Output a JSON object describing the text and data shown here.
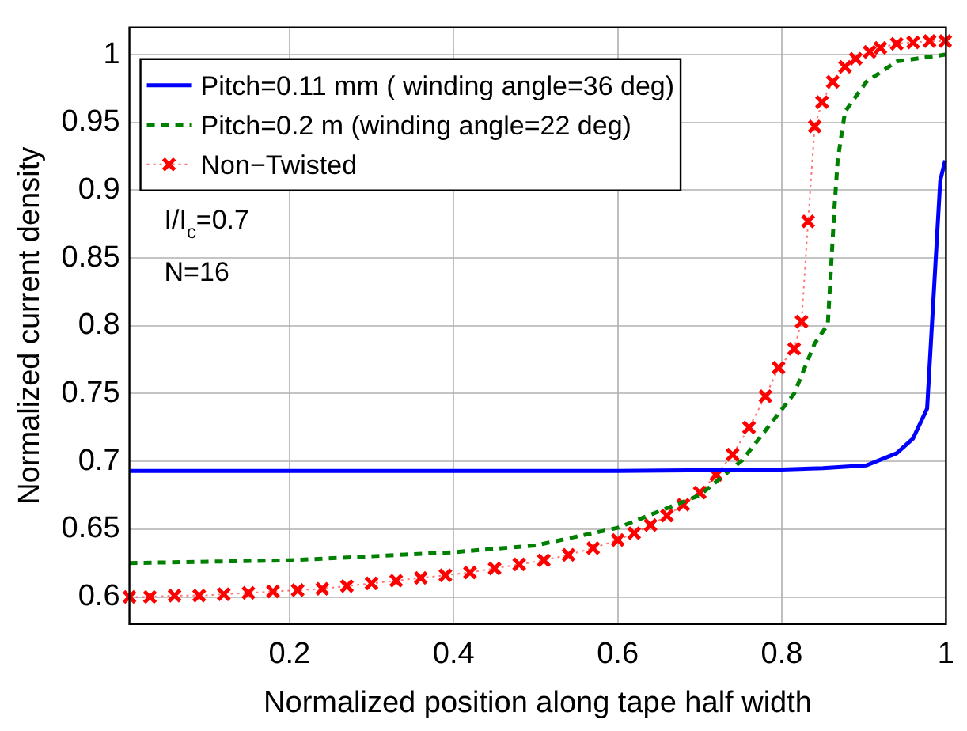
{
  "chart_data": {
    "type": "line",
    "xlabel": "Normalized position along tape half width",
    "ylabel": "Normalized current density",
    "xlim": [
      0.005,
      1
    ],
    "xticks": [
      0.2,
      0.4,
      0.6,
      0.8,
      1
    ],
    "ylim": [
      0.58,
      1.02
    ],
    "yticks": [
      0.6,
      0.65,
      0.7,
      0.75,
      0.8,
      0.85,
      0.9,
      0.95,
      1
    ],
    "grid": true,
    "legend": "top left",
    "annotations": [
      "I/I$_{c}$=0.7",
      "N=16"
    ],
    "series": [
      {
        "name": "Pitch=0.11 mm ( winding angle=36 deg)",
        "color": "#0000ff",
        "marker": "none",
        "line_style": "solid",
        "x": [
          0.005,
          0.2,
          0.4,
          0.6,
          0.8,
          0.85,
          0.903,
          0.94,
          0.96,
          0.977,
          0.993,
          0.999
        ],
        "values": [
          0.693,
          0.693,
          0.693,
          0.693,
          0.694,
          0.695,
          0.697,
          0.706,
          0.717,
          0.739,
          0.907,
          0.922
        ]
      },
      {
        "name": "Pitch=0.2 m (winding angle=22 deg)",
        "color": "#008000",
        "marker": "none",
        "line_style": "dashed",
        "x": [
          0.005,
          0.2,
          0.4,
          0.5,
          0.6,
          0.7,
          0.752,
          0.815,
          0.84,
          0.856,
          0.864,
          0.868,
          0.877,
          0.903,
          0.94,
          0.999
        ],
        "values": [
          0.625,
          0.627,
          0.633,
          0.638,
          0.651,
          0.675,
          0.701,
          0.75,
          0.787,
          0.801,
          0.886,
          0.922,
          0.958,
          0.98,
          0.995,
          1.0
        ]
      },
      {
        "name": "Non−Twisted",
        "color": "#ff0000",
        "marker": "cross",
        "line_style": "dotted",
        "x": [
          0.005,
          0.03,
          0.06,
          0.09,
          0.12,
          0.15,
          0.18,
          0.21,
          0.24,
          0.27,
          0.3,
          0.33,
          0.36,
          0.39,
          0.42,
          0.45,
          0.48,
          0.51,
          0.54,
          0.57,
          0.6,
          0.62,
          0.64,
          0.66,
          0.68,
          0.7,
          0.72,
          0.74,
          0.76,
          0.78,
          0.796,
          0.815,
          0.824,
          0.832,
          0.84,
          0.849,
          0.862,
          0.877,
          0.89,
          0.907,
          0.92,
          0.94,
          0.96,
          0.98,
          0.999
        ],
        "values": [
          0.6,
          0.6,
          0.601,
          0.601,
          0.602,
          0.603,
          0.604,
          0.605,
          0.606,
          0.608,
          0.61,
          0.612,
          0.614,
          0.616,
          0.618,
          0.621,
          0.624,
          0.627,
          0.631,
          0.636,
          0.642,
          0.647,
          0.653,
          0.66,
          0.668,
          0.677,
          0.69,
          0.705,
          0.725,
          0.748,
          0.769,
          0.783,
          0.803,
          0.877,
          0.947,
          0.965,
          0.98,
          0.991,
          0.997,
          1.002,
          1.005,
          1.008,
          1.009,
          1.01,
          1.01
        ]
      }
    ]
  }
}
